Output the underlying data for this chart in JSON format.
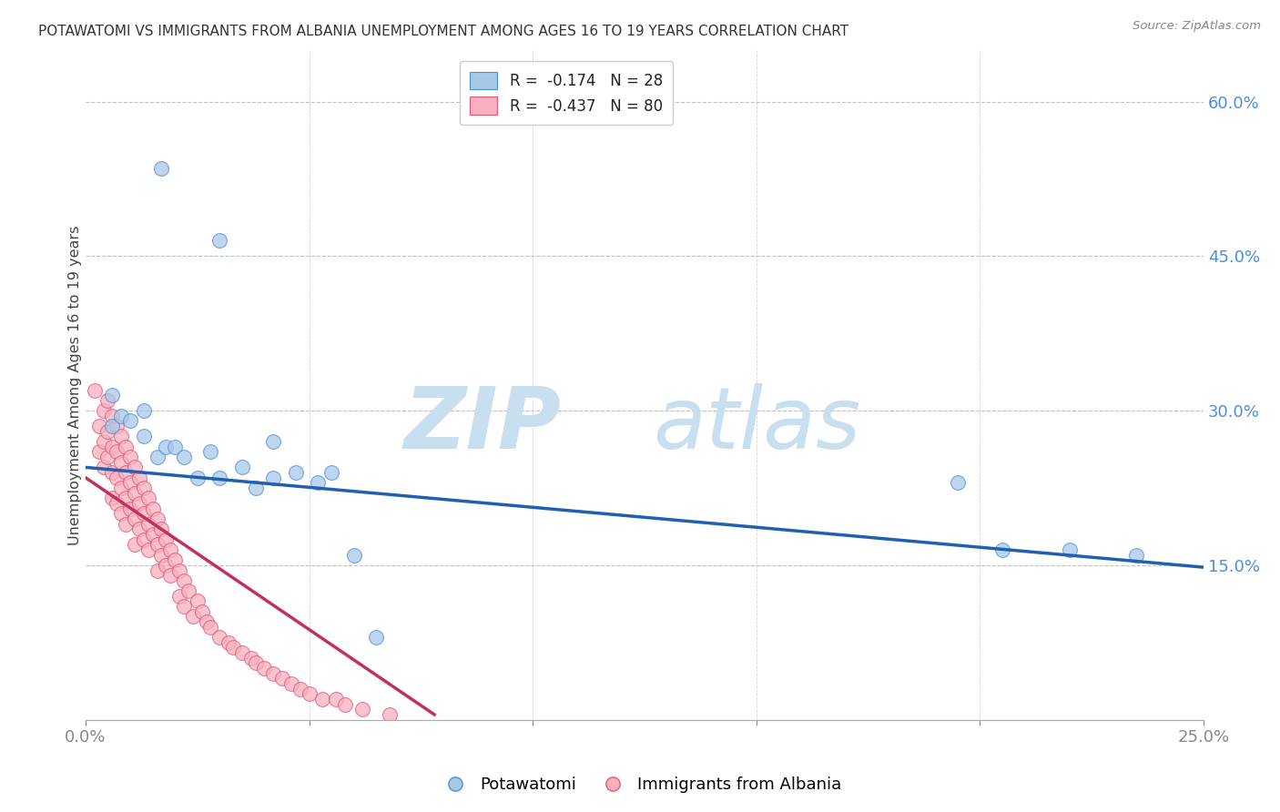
{
  "title": "POTAWATOMI VS IMMIGRANTS FROM ALBANIA UNEMPLOYMENT AMONG AGES 16 TO 19 YEARS CORRELATION CHART",
  "source": "Source: ZipAtlas.com",
  "ylabel": "Unemployment Among Ages 16 to 19 years",
  "xlim": [
    0.0,
    0.25
  ],
  "ylim": [
    0.0,
    0.65
  ],
  "color_blue": "#a8c8e8",
  "color_pink": "#f8b0be",
  "edge_blue": "#4a90d9",
  "edge_pink": "#e05878",
  "line_blue": "#2060b0",
  "line_pink": "#c03060",
  "blue_line_x0": 0.0,
  "blue_line_y0": 0.245,
  "blue_line_x1": 0.25,
  "blue_line_y1": 0.148,
  "pink_line_x0": 0.0,
  "pink_line_y0": 0.235,
  "pink_line_x1": 0.078,
  "pink_line_y1": 0.005,
  "watermark_zip_color": "#c8dff0",
  "watermark_atlas_color": "#c8dff0",
  "background_color": "#ffffff",
  "grid_color": "#bbbbbb",
  "potawatomi_x": [
    0.017,
    0.03,
    0.006,
    0.006,
    0.008,
    0.01,
    0.013,
    0.013,
    0.016,
    0.018,
    0.02,
    0.022,
    0.025,
    0.028,
    0.03,
    0.035,
    0.038,
    0.042,
    0.042,
    0.047,
    0.052,
    0.055,
    0.06,
    0.065,
    0.195,
    0.205,
    0.22,
    0.235
  ],
  "potawatomi_y": [
    0.535,
    0.465,
    0.315,
    0.285,
    0.295,
    0.29,
    0.3,
    0.275,
    0.255,
    0.265,
    0.265,
    0.255,
    0.235,
    0.26,
    0.235,
    0.245,
    0.225,
    0.27,
    0.235,
    0.24,
    0.23,
    0.24,
    0.16,
    0.08,
    0.23,
    0.165,
    0.165,
    0.16
  ],
  "albania_x": [
    0.002,
    0.003,
    0.003,
    0.004,
    0.004,
    0.004,
    0.005,
    0.005,
    0.005,
    0.006,
    0.006,
    0.006,
    0.006,
    0.007,
    0.007,
    0.007,
    0.007,
    0.008,
    0.008,
    0.008,
    0.008,
    0.009,
    0.009,
    0.009,
    0.009,
    0.01,
    0.01,
    0.01,
    0.011,
    0.011,
    0.011,
    0.011,
    0.012,
    0.012,
    0.012,
    0.013,
    0.013,
    0.013,
    0.014,
    0.014,
    0.014,
    0.015,
    0.015,
    0.016,
    0.016,
    0.016,
    0.017,
    0.017,
    0.018,
    0.018,
    0.019,
    0.019,
    0.02,
    0.021,
    0.021,
    0.022,
    0.022,
    0.023,
    0.024,
    0.025,
    0.026,
    0.027,
    0.028,
    0.03,
    0.032,
    0.033,
    0.035,
    0.037,
    0.038,
    0.04,
    0.042,
    0.044,
    0.046,
    0.048,
    0.05,
    0.053,
    0.056,
    0.058,
    0.062,
    0.068
  ],
  "albania_y": [
    0.32,
    0.285,
    0.26,
    0.3,
    0.27,
    0.245,
    0.31,
    0.28,
    0.255,
    0.295,
    0.265,
    0.24,
    0.215,
    0.285,
    0.26,
    0.235,
    0.21,
    0.275,
    0.25,
    0.225,
    0.2,
    0.265,
    0.24,
    0.215,
    0.19,
    0.255,
    0.23,
    0.205,
    0.245,
    0.22,
    0.195,
    0.17,
    0.235,
    0.21,
    0.185,
    0.225,
    0.2,
    0.175,
    0.215,
    0.19,
    0.165,
    0.205,
    0.18,
    0.195,
    0.17,
    0.145,
    0.185,
    0.16,
    0.175,
    0.15,
    0.165,
    0.14,
    0.155,
    0.145,
    0.12,
    0.135,
    0.11,
    0.125,
    0.1,
    0.115,
    0.105,
    0.095,
    0.09,
    0.08,
    0.075,
    0.07,
    0.065,
    0.06,
    0.055,
    0.05,
    0.045,
    0.04,
    0.035,
    0.03,
    0.025,
    0.02,
    0.02,
    0.015,
    0.01,
    0.005
  ]
}
